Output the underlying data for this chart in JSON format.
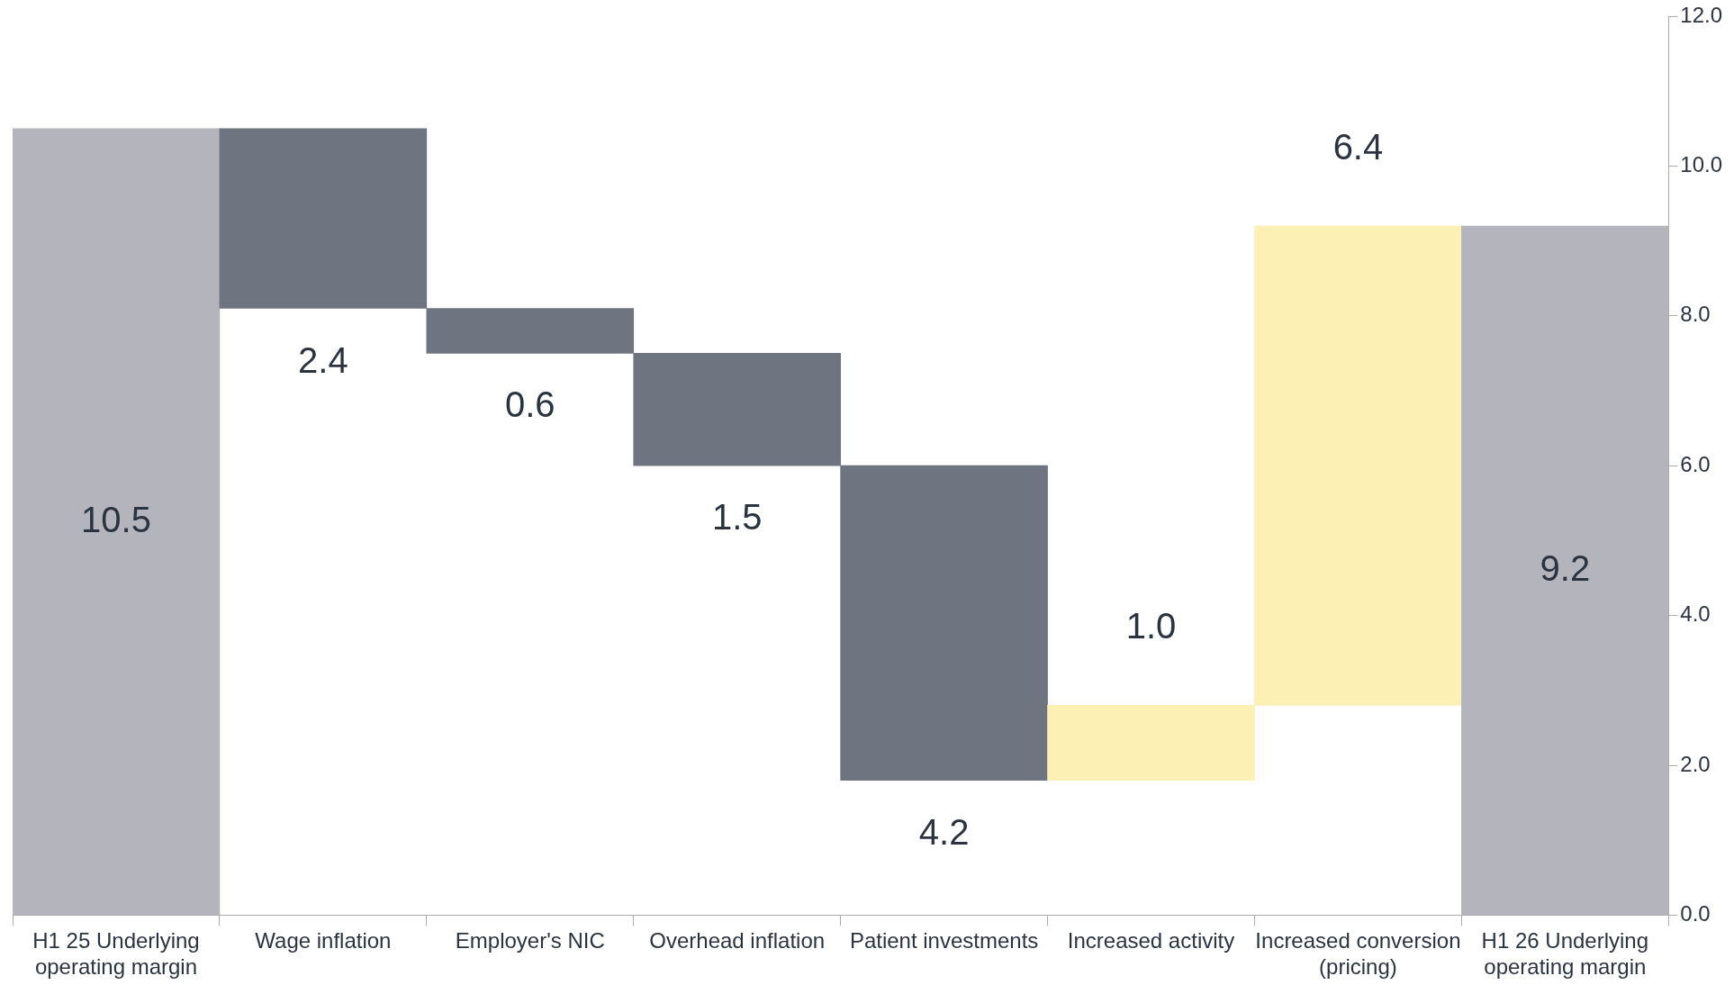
{
  "chart_data": {
    "type": "bar",
    "categories": [
      "H1 25 Underlying operating margin",
      "Wage inflation",
      "Employer's NIC",
      "Overhead inflation",
      "Patient investments",
      "Increased activity",
      "Increased conversion (pricing)",
      "H1 26 Underlying operating margin"
    ],
    "values": [
      10.5,
      -2.4,
      -0.6,
      -1.5,
      -4.2,
      1.0,
      6.4,
      9.2
    ],
    "base": [
      0,
      10.5,
      8.1,
      7.5,
      6.0,
      1.8,
      2.8,
      0
    ],
    "colors": [
      "#b4b4bc",
      "#6e7580",
      "#6e7580",
      "#6e7580",
      "#6e7580",
      "#fcf0b4",
      "#fcf0b4",
      "#b4b4bc"
    ],
    "value_labels": [
      "10.5",
      "2.4",
      "0.6",
      "1.5",
      "4.2",
      "1.0",
      "6.4",
      "9.2"
    ],
    "ylim": [
      0,
      12
    ],
    "yticks": [
      {
        "value": 0,
        "label": "0.0"
      },
      {
        "value": 2,
        "label": "2.0"
      },
      {
        "value": 4,
        "label": "4.0"
      },
      {
        "value": 6,
        "label": "6.0"
      },
      {
        "value": 8,
        "label": "8.0"
      },
      {
        "value": 10,
        "label": "10.0"
      },
      {
        "value": 12,
        "label": "12.0"
      }
    ],
    "grid": false,
    "legend": false
  }
}
